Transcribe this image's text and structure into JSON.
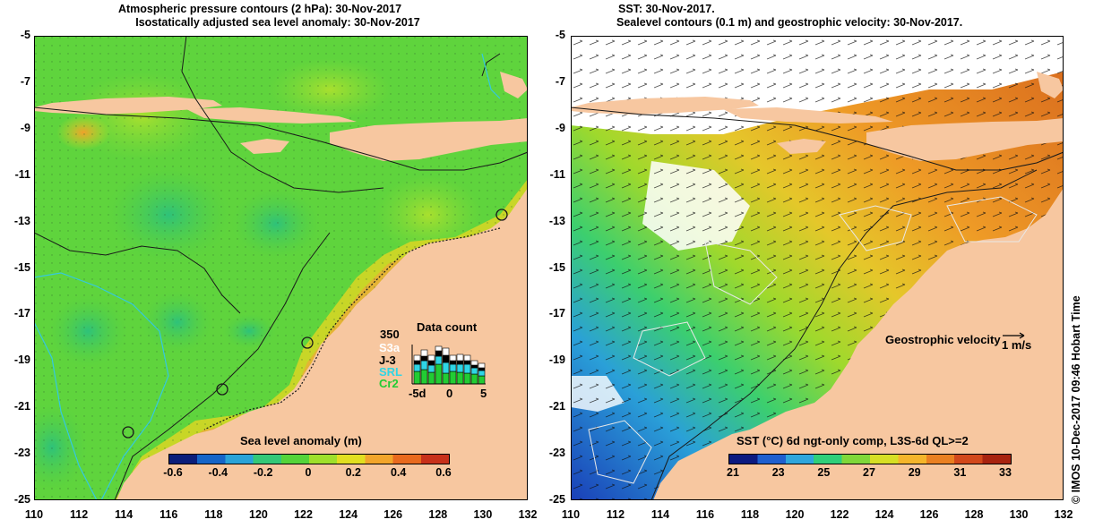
{
  "left_panel": {
    "title_line1": "Atmospheric pressure contours (2 hPa): 30-Nov-2017",
    "title_line2": "Isostatically adjusted sea level anomaly: 30-Nov-2017",
    "colorbar": {
      "label": "Sea level anomaly (m)",
      "ticks": [
        "-0.6",
        "-0.4",
        "-0.2",
        "0",
        "0.2",
        "0.4",
        "0.6"
      ],
      "colors": [
        "#0b1e7a",
        "#1565c8",
        "#2aa3d8",
        "#34c878",
        "#54d43a",
        "#9fe02a",
        "#e2df20",
        "#f2a52a",
        "#e86a1e",
        "#c8301a"
      ]
    },
    "data_count": {
      "title": "Data count",
      "max_label": "350",
      "missions": [
        {
          "name": "S3a",
          "color": "#ffffff"
        },
        {
          "name": "J-3",
          "color": "#000000"
        },
        {
          "name": "SRL",
          "color": "#2fd5e5"
        },
        {
          "name": "Cr2",
          "color": "#22cc33"
        }
      ],
      "axis_labels": [
        "-5d",
        "0",
        "5"
      ]
    }
  },
  "right_panel": {
    "title_line1": "SST: 30-Nov-2017.",
    "title_line2": "Sealevel contours (0.1 m) and geostrophic velocity: 30-Nov-2017.",
    "velocity_legend": {
      "label": "Geostrophic velocity",
      "scale_label": "1 m/s"
    },
    "colorbar": {
      "label": "SST (°C) 6d ngt-only comp, L3S-6d QL>=2",
      "ticks": [
        "21",
        "23",
        "25",
        "27",
        "29",
        "31",
        "33"
      ],
      "colors": [
        "#0c1a80",
        "#1e5fcf",
        "#2fa6dc",
        "#2fcf7a",
        "#7fd83a",
        "#d7df24",
        "#f5b52a",
        "#ea8021",
        "#d2481b",
        "#a8230f"
      ]
    }
  },
  "axes": {
    "lat_ticks": [
      "-5",
      "-7",
      "-9",
      "-11",
      "-13",
      "-15",
      "-17",
      "-19",
      "-21",
      "-23",
      "-25"
    ],
    "lon_ticks": [
      "110",
      "112",
      "114",
      "116",
      "118",
      "120",
      "122",
      "124",
      "126",
      "128",
      "130",
      "132"
    ],
    "lat_range": [
      -25,
      -5
    ],
    "lon_range": [
      110,
      132
    ]
  },
  "credit": "© IMOS 10-Dec-2017 09:46 Hobart Time",
  "colors": {
    "land": "#f7c7a0",
    "sla_base": "#62d43a",
    "sst_cool": "#2ea0d8",
    "sst_warm": "#e79a26"
  }
}
